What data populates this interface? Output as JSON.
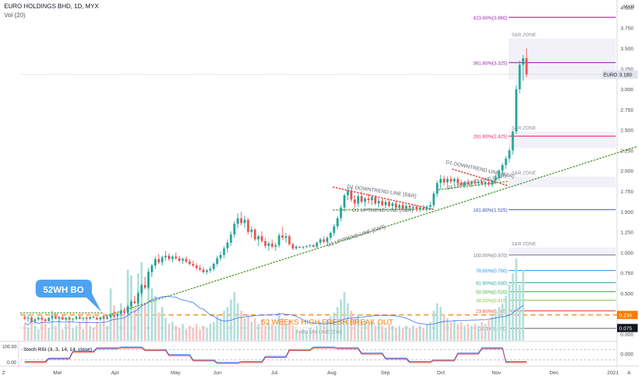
{
  "header": {
    "symbol_line": "EURO HOLDINGS BHD, 1D, MYX",
    "vol_label": "Vol (20)",
    "currency": "MYR"
  },
  "chart_data": {
    "type": "candlestick",
    "x_tick_labels": [
      "Mar",
      "Apr",
      "May",
      "Jun",
      "Jul",
      "Aug",
      "Sep",
      "Oct",
      "Nov",
      "Dec",
      "2021"
    ],
    "y_ticks": [
      4.0,
      3.75,
      3.5,
      3.25,
      3.0,
      2.75,
      2.5,
      2.25,
      2.0,
      1.75,
      1.5,
      1.25,
      1.0,
      0.75,
      0.5,
      0.25,
      0.0
    ],
    "y_tick_labels": [
      "4.000",
      "3.750",
      "3.500",
      "3.250",
      "3.000",
      "2.750",
      "2.500",
      "2.250",
      "2.000",
      "1.750",
      "1.500",
      "1.250",
      "1.000",
      "0.750",
      "0.500",
      "0.250",
      "0.000"
    ],
    "ylim": [
      -0.08,
      4.05
    ],
    "colors": {
      "up": "#26a69a",
      "down": "#ef5350",
      "vol_up": "#b2dfdb",
      "vol_down": "#f7c5c3"
    },
    "current_price": {
      "label": "EURO",
      "value": "3.180",
      "y": 3.18
    },
    "line_52w": {
      "value": "0.235",
      "y": 0.235,
      "color": "#f57c00"
    },
    "line_fibo0": {
      "value": "0.075",
      "y": 0.075
    },
    "fibo_levels": [
      {
        "label": "423.60%(3.880)",
        "y": 3.88,
        "color": "#9c27b0"
      },
      {
        "label": "361.80%(3.325)",
        "y": 3.325,
        "color": "#9c27b0"
      },
      {
        "label": "261.80%(2.425)",
        "y": 2.425,
        "color": "#e91e63"
      },
      {
        "label": "161.80%(1.525)",
        "y": 1.525,
        "color": "#3f51b5"
      },
      {
        "label": "100.00%(0.970)",
        "y": 0.97,
        "color": "#787b86"
      },
      {
        "label": "78.60%(0.780)",
        "y": 0.78,
        "color": "#2196f3"
      },
      {
        "label": "61.80%(0.630)",
        "y": 0.63,
        "color": "#26a69a"
      },
      {
        "label": "50.00%(0.520)",
        "y": 0.52,
        "color": "#4caf50"
      },
      {
        "label": "38.20%(0.415)",
        "y": 0.415,
        "color": "#8bc34a"
      },
      {
        "label": "23.60%(0.285)",
        "y": 0.285,
        "color": "#f44336"
      },
      {
        "label": "0.00%(0.070)",
        "y": 0.07,
        "color": "#787b86"
      }
    ],
    "zones": [
      {
        "label": "S&R ZONE",
        "y_top": 3.62,
        "y_bottom": 3.12
      },
      {
        "label": "S&R ZONE",
        "y_top": 2.48,
        "y_bottom": 2.28
      },
      {
        "label": "S&R ZONE",
        "y_top": 1.93,
        "y_bottom": 1.8
      },
      {
        "label": "S&R ZONE",
        "y_top": 1.06,
        "y_bottom": 0.96
      }
    ],
    "trend_labels": [
      "D1 DOWNTREND LINE [S&R]",
      "D1 UPTREND LINE [S&R]",
      "D1 UPTREND LINE [S&R]",
      "D1 DOWNTREND LINE [S&R]",
      "D1 UPTREND LINE [S&R]"
    ],
    "annotations": {
      "break_out": "52 WEEKS HIGH FRESH BREAK OUT",
      "fibo_zero": "FIBO 0% LINE [1W]",
      "callout": "52WH BO"
    },
    "stoch": {
      "label": "Stoch RSI (3, 3, 14, 14, close)",
      "left_labels": [
        "100.00",
        "0.00"
      ],
      "right_label": "0.000"
    },
    "axis_corner_labels": [
      "Z",
      "A"
    ],
    "candles": [
      [
        0.21,
        0.23,
        0.17,
        0.19
      ],
      [
        0.19,
        0.24,
        0.15,
        0.2
      ],
      [
        0.2,
        0.22,
        0.14,
        0.16
      ],
      [
        0.16,
        0.2,
        0.12,
        0.18
      ],
      [
        0.18,
        0.22,
        0.16,
        0.2
      ],
      [
        0.2,
        0.23,
        0.17,
        0.18
      ],
      [
        0.18,
        0.2,
        0.14,
        0.16
      ],
      [
        0.16,
        0.21,
        0.15,
        0.2
      ],
      [
        0.2,
        0.24,
        0.18,
        0.22
      ],
      [
        0.22,
        0.25,
        0.18,
        0.19
      ],
      [
        0.19,
        0.22,
        0.16,
        0.21
      ],
      [
        0.21,
        0.23,
        0.17,
        0.18
      ],
      [
        0.18,
        0.21,
        0.15,
        0.2
      ],
      [
        0.2,
        0.22,
        0.17,
        0.18
      ],
      [
        0.18,
        0.2,
        0.15,
        0.19
      ],
      [
        0.19,
        0.23,
        0.17,
        0.21
      ],
      [
        0.21,
        0.24,
        0.18,
        0.19
      ],
      [
        0.19,
        0.21,
        0.16,
        0.2
      ],
      [
        0.2,
        0.22,
        0.18,
        0.19
      ],
      [
        0.19,
        0.22,
        0.17,
        0.21
      ],
      [
        0.21,
        0.24,
        0.19,
        0.2
      ],
      [
        0.2,
        0.22,
        0.17,
        0.18
      ],
      [
        0.18,
        0.21,
        0.16,
        0.2
      ],
      [
        0.2,
        0.23,
        0.18,
        0.19
      ],
      [
        0.19,
        0.22,
        0.17,
        0.21
      ],
      [
        0.21,
        0.25,
        0.19,
        0.23
      ],
      [
        0.23,
        0.28,
        0.2,
        0.22
      ],
      [
        0.22,
        0.27,
        0.19,
        0.25
      ],
      [
        0.25,
        0.3,
        0.22,
        0.28
      ],
      [
        0.28,
        0.33,
        0.24,
        0.26
      ],
      [
        0.26,
        0.36,
        0.24,
        0.34
      ],
      [
        0.34,
        0.42,
        0.3,
        0.4
      ],
      [
        0.4,
        0.47,
        0.37,
        0.38
      ],
      [
        0.38,
        0.52,
        0.36,
        0.5
      ],
      [
        0.5,
        0.62,
        0.46,
        0.6
      ],
      [
        0.6,
        0.7,
        0.55,
        0.57
      ],
      [
        0.57,
        0.78,
        0.55,
        0.76
      ],
      [
        0.76,
        0.86,
        0.7,
        0.84
      ],
      [
        0.84,
        0.95,
        0.8,
        0.92
      ],
      [
        0.92,
        0.98,
        0.86,
        0.88
      ],
      [
        0.88,
        0.96,
        0.84,
        0.94
      ],
      [
        0.94,
        1.02,
        0.9,
        0.96
      ],
      [
        0.96,
        0.99,
        0.9,
        0.92
      ],
      [
        0.92,
        0.97,
        0.88,
        0.95
      ],
      [
        0.95,
        1.0,
        0.91,
        0.93
      ],
      [
        0.93,
        0.96,
        0.88,
        0.9
      ],
      [
        0.9,
        0.94,
        0.86,
        0.92
      ],
      [
        0.92,
        0.95,
        0.87,
        0.89
      ],
      [
        0.89,
        0.92,
        0.84,
        0.86
      ],
      [
        0.86,
        0.9,
        0.82,
        0.84
      ],
      [
        0.84,
        0.87,
        0.79,
        0.81
      ],
      [
        0.81,
        0.85,
        0.77,
        0.79
      ],
      [
        0.79,
        0.82,
        0.74,
        0.76
      ],
      [
        0.76,
        0.8,
        0.73,
        0.78
      ],
      [
        0.78,
        0.83,
        0.75,
        0.8
      ],
      [
        0.8,
        0.88,
        0.77,
        0.86
      ],
      [
        0.86,
        0.96,
        0.83,
        0.93
      ],
      [
        0.93,
        1.01,
        0.9,
        0.97
      ],
      [
        0.97,
        1.08,
        0.93,
        1.05
      ],
      [
        1.05,
        1.16,
        1.0,
        1.12
      ],
      [
        1.12,
        1.26,
        1.08,
        1.22
      ],
      [
        1.22,
        1.38,
        1.18,
        1.35
      ],
      [
        1.35,
        1.48,
        1.3,
        1.42
      ],
      [
        1.42,
        1.5,
        1.33,
        1.36
      ],
      [
        1.36,
        1.45,
        1.3,
        1.4
      ],
      [
        1.4,
        1.42,
        1.22,
        1.25
      ],
      [
        1.25,
        1.32,
        1.18,
        1.28
      ],
      [
        1.28,
        1.3,
        1.14,
        1.16
      ],
      [
        1.16,
        1.22,
        1.08,
        1.2
      ],
      [
        1.2,
        1.26,
        1.12,
        1.14
      ],
      [
        1.14,
        1.18,
        1.05,
        1.08
      ],
      [
        1.08,
        1.14,
        1.02,
        1.11
      ],
      [
        1.11,
        1.16,
        1.05,
        1.07
      ],
      [
        1.07,
        1.12,
        1.02,
        1.09
      ],
      [
        1.09,
        1.24,
        1.06,
        1.21
      ],
      [
        1.21,
        1.32,
        1.15,
        1.18
      ],
      [
        1.18,
        1.24,
        1.12,
        1.2
      ],
      [
        1.2,
        1.22,
        1.08,
        1.1
      ],
      [
        1.1,
        1.12,
        1.03,
        1.05
      ],
      [
        1.05,
        1.09,
        1.03,
        1.07
      ],
      [
        1.07,
        1.08,
        1.05,
        1.06
      ],
      [
        1.06,
        1.08,
        1.04,
        1.07
      ],
      [
        1.07,
        1.09,
        1.05,
        1.08
      ],
      [
        1.08,
        1.1,
        1.06,
        1.09
      ],
      [
        1.09,
        1.1,
        1.06,
        1.07
      ],
      [
        1.07,
        1.14,
        1.05,
        1.12
      ],
      [
        1.12,
        1.18,
        1.09,
        1.16
      ],
      [
        1.16,
        1.2,
        1.11,
        1.13
      ],
      [
        1.13,
        1.2,
        1.11,
        1.18
      ],
      [
        1.18,
        1.26,
        1.15,
        1.24
      ],
      [
        1.24,
        1.35,
        1.2,
        1.32
      ],
      [
        1.32,
        1.45,
        1.28,
        1.42
      ],
      [
        1.42,
        1.58,
        1.38,
        1.55
      ],
      [
        1.55,
        1.72,
        1.5,
        1.7
      ],
      [
        1.7,
        1.8,
        1.64,
        1.76
      ],
      [
        1.76,
        1.8,
        1.62,
        1.65
      ],
      [
        1.65,
        1.7,
        1.55,
        1.6
      ],
      [
        1.6,
        1.72,
        1.56,
        1.69
      ],
      [
        1.69,
        1.75,
        1.6,
        1.62
      ],
      [
        1.62,
        1.68,
        1.56,
        1.66
      ],
      [
        1.66,
        1.72,
        1.6,
        1.64
      ],
      [
        1.64,
        1.7,
        1.58,
        1.68
      ],
      [
        1.68,
        1.7,
        1.58,
        1.6
      ],
      [
        1.6,
        1.66,
        1.55,
        1.63
      ],
      [
        1.63,
        1.67,
        1.56,
        1.58
      ],
      [
        1.58,
        1.64,
        1.54,
        1.62
      ],
      [
        1.62,
        1.65,
        1.55,
        1.57
      ],
      [
        1.57,
        1.62,
        1.53,
        1.6
      ],
      [
        1.6,
        1.63,
        1.53,
        1.55
      ],
      [
        1.55,
        1.6,
        1.52,
        1.58
      ],
      [
        1.58,
        1.61,
        1.52,
        1.54
      ],
      [
        1.54,
        1.59,
        1.52,
        1.57
      ],
      [
        1.57,
        1.6,
        1.52,
        1.55
      ],
      [
        1.55,
        1.58,
        1.51,
        1.56
      ],
      [
        1.56,
        1.58,
        1.5,
        1.53
      ],
      [
        1.53,
        1.57,
        1.5,
        1.55
      ],
      [
        1.55,
        1.58,
        1.51,
        1.53
      ],
      [
        1.53,
        1.58,
        1.5,
        1.56
      ],
      [
        1.56,
        1.62,
        1.52,
        1.58
      ],
      [
        1.58,
        1.75,
        1.55,
        1.72
      ],
      [
        1.72,
        1.88,
        1.68,
        1.85
      ],
      [
        1.85,
        1.95,
        1.78,
        1.9
      ],
      [
        1.9,
        1.94,
        1.82,
        1.86
      ],
      [
        1.86,
        1.93,
        1.82,
        1.9
      ],
      [
        1.9,
        1.94,
        1.84,
        1.87
      ],
      [
        1.87,
        1.92,
        1.82,
        1.9
      ],
      [
        1.9,
        1.93,
        1.83,
        1.85
      ],
      [
        1.85,
        1.89,
        1.8,
        1.82
      ],
      [
        1.82,
        1.88,
        1.79,
        1.86
      ],
      [
        1.86,
        1.9,
        1.82,
        1.84
      ],
      [
        1.84,
        1.88,
        1.8,
        1.86
      ],
      [
        1.86,
        1.9,
        1.82,
        1.85
      ],
      [
        1.85,
        1.89,
        1.81,
        1.87
      ],
      [
        1.87,
        1.91,
        1.82,
        1.84
      ],
      [
        1.84,
        1.88,
        1.8,
        1.86
      ],
      [
        1.86,
        1.89,
        1.81,
        1.83
      ],
      [
        1.83,
        1.9,
        1.8,
        1.88
      ],
      [
        1.88,
        1.95,
        1.84,
        1.92
      ],
      [
        1.92,
        2.02,
        1.88,
        2.0
      ],
      [
        2.0,
        2.1,
        1.96,
        2.07
      ],
      [
        2.07,
        2.18,
        2.02,
        2.15
      ],
      [
        2.15,
        2.28,
        2.1,
        2.25
      ],
      [
        2.25,
        2.5,
        2.2,
        2.48
      ],
      [
        2.48,
        3.05,
        2.45,
        3.0
      ],
      [
        3.0,
        3.35,
        2.95,
        3.3
      ],
      [
        3.3,
        3.42,
        3.1,
        3.38
      ],
      [
        3.38,
        3.5,
        3.15,
        3.18
      ]
    ],
    "volumes": [
      0.9,
      0.7,
      1.4,
      0.8,
      0.6,
      1.2,
      0.9,
      0.7,
      1.6,
      0.8,
      1.1,
      0.6,
      0.9,
      1.3,
      0.7,
      0.8,
      1.0,
      0.6,
      1.2,
      0.8,
      0.7,
      1.0,
      0.9,
      1.5,
      0.8,
      2.8,
      1.9,
      1.2,
      2.0,
      1.4,
      3.8,
      3.5,
      1.8,
      3.6,
      4.2,
      2.0,
      3.9,
      2.8,
      2.4,
      1.5,
      1.8,
      1.2,
      0.9,
      1.0,
      0.8,
      0.7,
      0.9,
      0.6,
      0.8,
      0.7,
      0.9,
      0.6,
      0.8,
      0.7,
      0.9,
      1.0,
      1.4,
      1.2,
      1.6,
      1.8,
      2.2,
      2.6,
      2.0,
      1.6,
      1.2,
      1.4,
      1.0,
      1.2,
      0.9,
      1.1,
      0.8,
      1.0,
      0.9,
      0.8,
      1.5,
      1.2,
      0.9,
      1.1,
      0.8,
      0.6,
      0.5,
      0.6,
      0.5,
      0.7,
      0.6,
      0.8,
      1.0,
      0.9,
      1.1,
      1.3,
      1.5,
      1.8,
      2.2,
      2.6,
      2.0,
      1.6,
      1.2,
      1.4,
      1.0,
      1.1,
      0.9,
      1.0,
      0.8,
      0.9,
      0.8,
      0.7,
      0.9,
      0.8,
      0.7,
      0.8,
      0.7,
      0.8,
      0.7,
      0.8,
      0.7,
      0.8,
      0.7,
      0.9,
      1.0,
      1.6,
      2.0,
      1.8,
      1.4,
      1.2,
      1.0,
      1.1,
      0.9,
      1.0,
      0.8,
      0.9,
      0.8,
      0.9,
      0.8,
      1.0,
      0.9,
      1.1,
      1.3,
      1.6,
      1.8,
      2.0,
      2.4,
      3.0,
      3.6,
      4.4,
      3.0,
      3.8
    ]
  }
}
